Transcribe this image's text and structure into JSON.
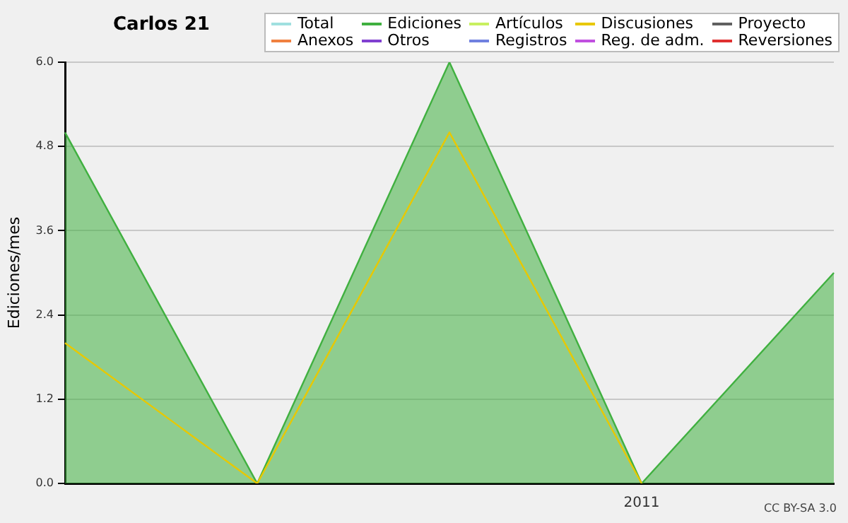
{
  "chart_data": {
    "type": "line",
    "title": "Carlos 21",
    "ylabel": "Ediciones/mes",
    "categories": [
      null,
      null,
      null,
      "2011",
      null
    ],
    "ylim": [
      0,
      6
    ],
    "yticks": [
      {
        "value": 0,
        "label": "0.0"
      },
      {
        "value": 1.2,
        "label": "1.2"
      },
      {
        "value": 2.4,
        "label": "2.4"
      },
      {
        "value": 3.6,
        "label": "3.6"
      },
      {
        "value": 4.8,
        "label": "4.8"
      },
      {
        "value": 6,
        "label": "6.0"
      }
    ],
    "grid": "y",
    "legend": "top right",
    "marker": "none",
    "line_style": "solid",
    "annotations": [
      "CC BY-SA 3.0"
    ],
    "series": [
      {
        "name": "Total",
        "color": "#a0e0e0",
        "values": [
          null,
          null,
          null,
          null,
          null
        ]
      },
      {
        "name": "Ediciones",
        "color": "#40b040",
        "type": "area",
        "values": [
          5,
          0,
          6,
          0,
          3
        ]
      },
      {
        "name": "Artículos",
        "color": "#c8f060",
        "values": [
          null,
          null,
          null,
          null,
          null
        ]
      },
      {
        "name": "Discusiones",
        "color": "#e8c800",
        "values": [
          2,
          0,
          5,
          0,
          null
        ]
      },
      {
        "name": "Proyecto",
        "color": "#606060",
        "values": [
          null,
          null,
          null,
          null,
          null
        ]
      },
      {
        "name": "Anexos",
        "color": "#f08040",
        "values": [
          null,
          null,
          null,
          null,
          null
        ]
      },
      {
        "name": "Otros",
        "color": "#8040d0",
        "values": [
          null,
          null,
          null,
          null,
          null
        ]
      },
      {
        "name": "Registros",
        "color": "#7080e0",
        "values": [
          null,
          null,
          null,
          null,
          null
        ]
      },
      {
        "name": "Reg. de adm.",
        "color": "#c050e0",
        "values": [
          null,
          null,
          null,
          null,
          null
        ]
      },
      {
        "name": "Reversiones",
        "color": "#e03030",
        "values": [
          null,
          null,
          null,
          null,
          null
        ]
      }
    ]
  }
}
